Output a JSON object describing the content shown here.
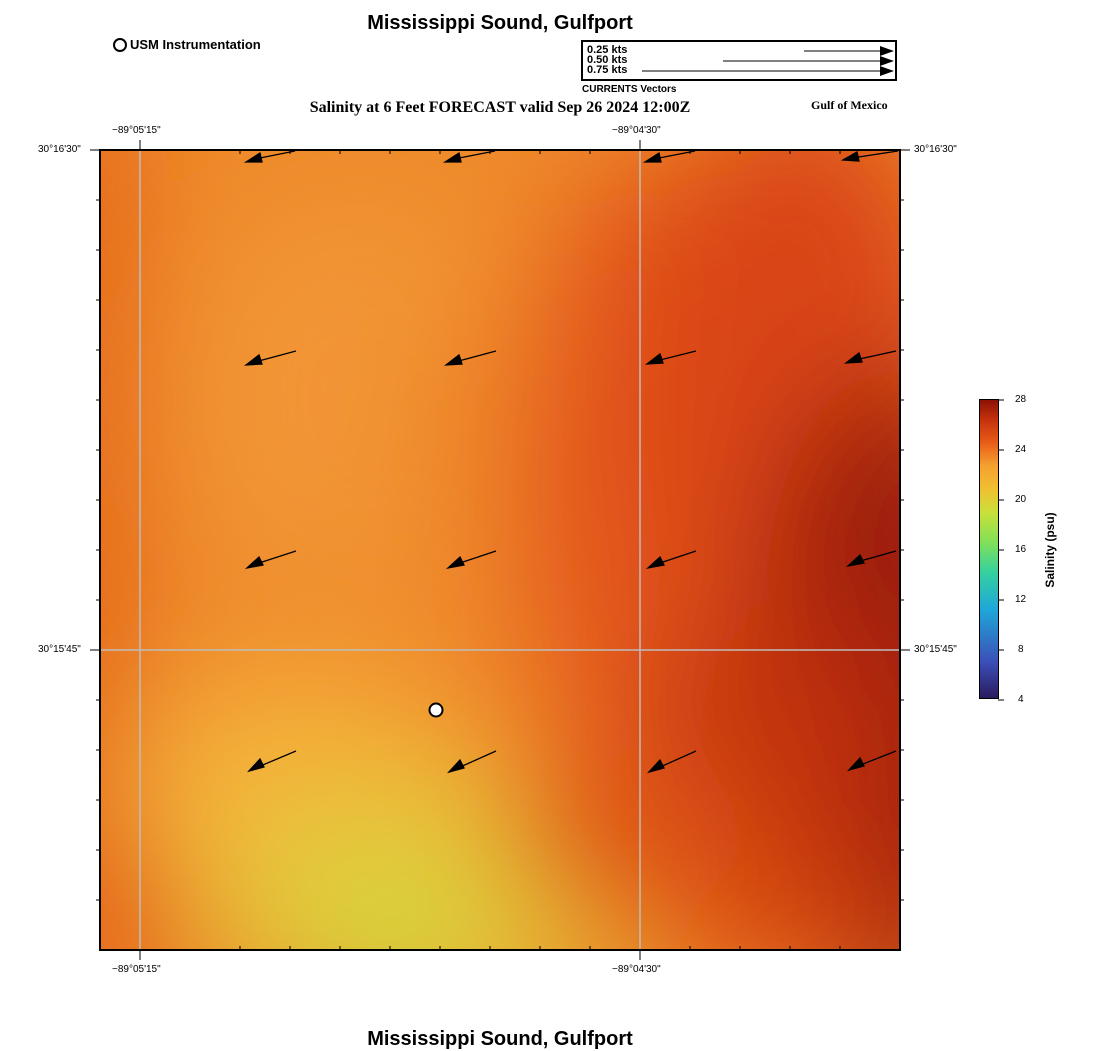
{
  "header": {
    "title": "Mississippi Sound, Gulfport",
    "legend_station_label": "USM Instrumentation",
    "subtitle": "Salinity at 6 Feet FORECAST valid Sep 26 2024 12:00Z",
    "region_label": "Gulf of Mexico"
  },
  "vector_legend": {
    "caption": "CURRENTS Vectors",
    "entries": [
      {
        "label": "0.25 kts",
        "speed_kts": 0.25
      },
      {
        "label": "0.50 kts",
        "speed_kts": 0.5
      },
      {
        "label": "0.75 kts",
        "speed_kts": 0.75
      }
    ]
  },
  "map": {
    "lon_ticks": [
      "−89°05'15\"",
      "−89°04'30\""
    ],
    "lat_ticks": [
      "30°16'30\"",
      "30°15'45\""
    ],
    "station_name": "USM Instrumentation"
  },
  "colorbar": {
    "label": "Salinity (psu)",
    "min": 4,
    "max": 28,
    "ticks": [
      "28",
      "24",
      "20",
      "16",
      "12",
      "8",
      "4"
    ]
  },
  "footer": {
    "title": "Mississippi Sound, Gulfport"
  },
  "colors": {
    "low": "#2a1a5e",
    "mid_low": "#1fa8d8",
    "mid": "#c8e03a",
    "mid_high": "#f5a030",
    "high": "#e04a10",
    "max": "#8c1204"
  }
}
